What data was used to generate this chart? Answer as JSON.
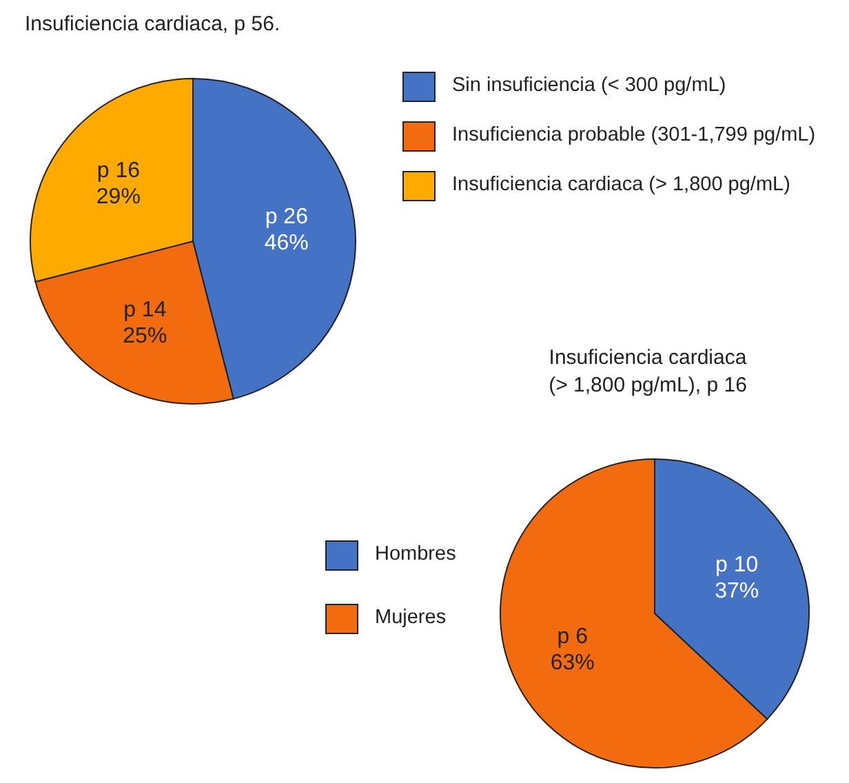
{
  "chart_data": [
    {
      "type": "pie",
      "title": "Insuficiencia cardiaca, p 56.",
      "categories": [
        "Sin insuficiencia (< 300 pg/mL)",
        "Insuficiencia probable (301-1,799 pg/mL)",
        "Insuficiencia cardiaca (> 1,800 pg/mL)"
      ],
      "values": [
        46,
        25,
        29
      ],
      "colors": [
        "#4472c4",
        "#f26b0f",
        "#ffaa00"
      ],
      "value_labels": [
        "p 26\n46%",
        "p 14\n25%",
        "p 16\n29%"
      ],
      "legend": "right"
    },
    {
      "type": "pie",
      "title": "Insuficiencia cardiaca\n(> 1,800 pg/mL), p 16",
      "categories": [
        "Hombres",
        "Mujeres"
      ],
      "values": [
        37,
        63
      ],
      "colors": [
        "#4472c4",
        "#f26b0f"
      ],
      "value_labels": [
        "p 10\n37%",
        "p 6\n63%"
      ],
      "legend": "left"
    }
  ]
}
